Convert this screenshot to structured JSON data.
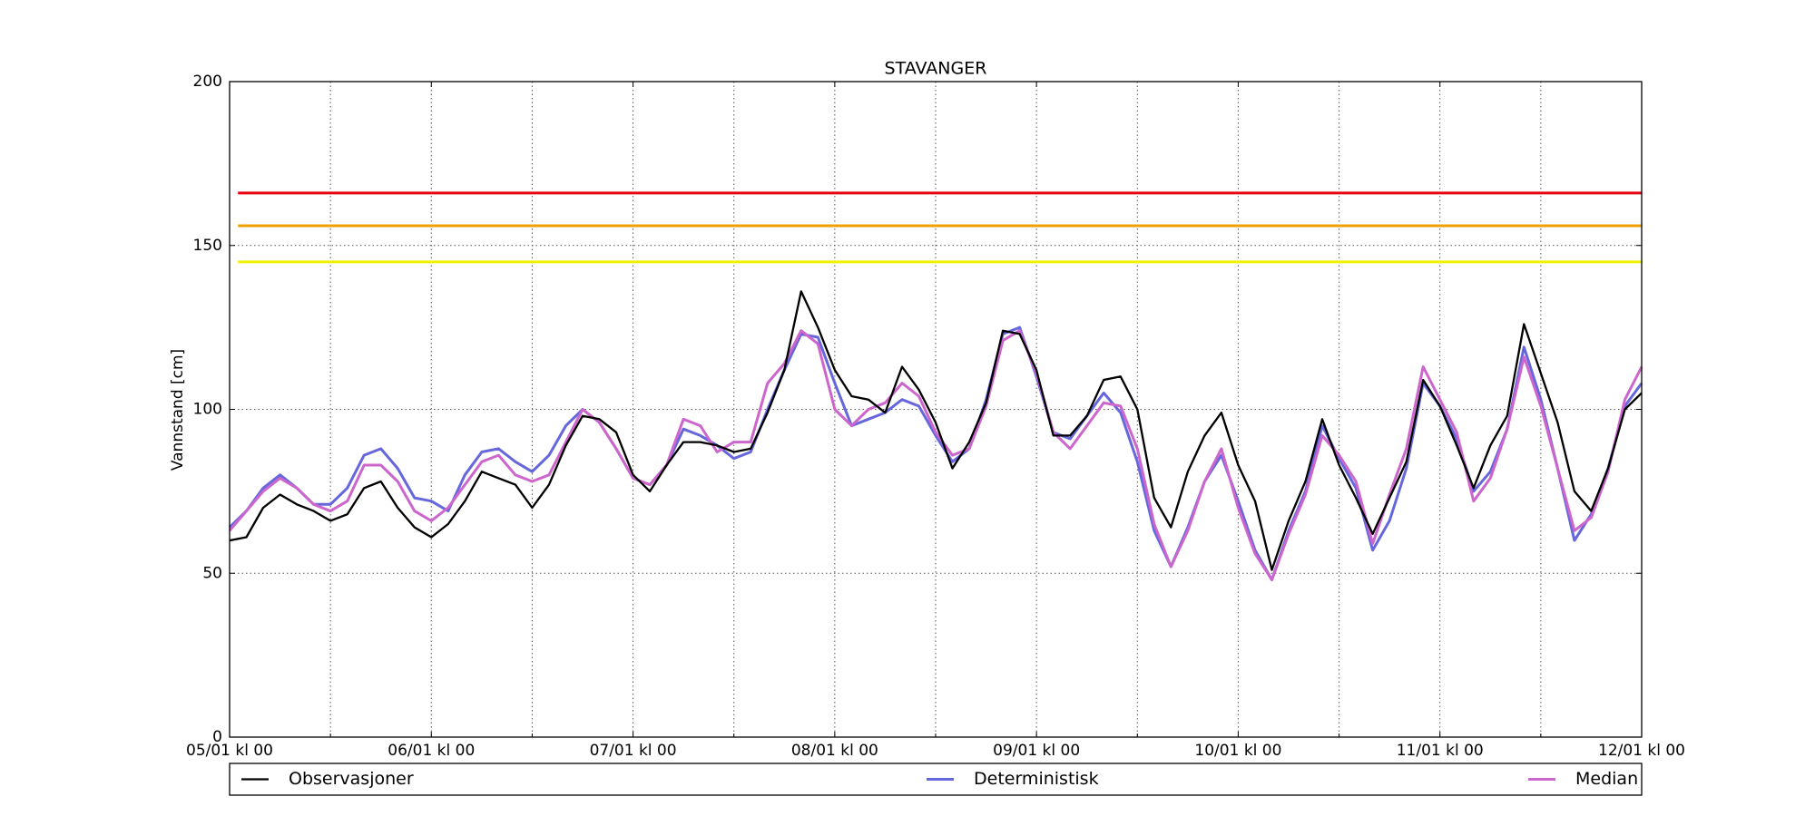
{
  "chart_data": {
    "type": "line",
    "title": "STAVANGER",
    "y_label": "Vannstand [cm]",
    "x": [
      0,
      2,
      4,
      6,
      8,
      10,
      12,
      14,
      16,
      18,
      20,
      22,
      24,
      26,
      28,
      30,
      32,
      34,
      36,
      38,
      40,
      42,
      44,
      46,
      48,
      50,
      52,
      54,
      56,
      58,
      60,
      62,
      64,
      66,
      68,
      70,
      72,
      74,
      76,
      78,
      80,
      82,
      84,
      86,
      88,
      90,
      92,
      94,
      96,
      98,
      100,
      102,
      104,
      106,
      108,
      110,
      112,
      114,
      116,
      118,
      120,
      122,
      124,
      126,
      128,
      130,
      132,
      134,
      136,
      138,
      140,
      142,
      144,
      146,
      148,
      150,
      152,
      154,
      156,
      158,
      160,
      162,
      164,
      166,
      168
    ],
    "series": [
      {
        "name": "Observasjoner",
        "color": "#000000",
        "values": [
          60,
          61,
          70,
          74,
          71,
          69,
          66,
          68,
          76,
          78,
          70,
          64,
          61,
          65,
          72,
          81,
          79,
          77,
          70,
          77,
          89,
          98,
          97,
          93,
          80,
          75,
          83,
          90,
          90,
          89,
          87,
          88,
          99,
          112,
          136,
          125,
          112,
          104,
          103,
          99,
          113,
          106,
          96,
          82,
          90,
          102,
          124,
          123,
          112,
          92,
          92,
          98,
          109,
          110,
          100,
          73,
          64,
          81,
          92,
          99,
          83,
          72,
          51,
          66,
          78,
          97,
          83,
          73,
          62,
          73,
          84,
          109,
          101,
          89,
          76,
          89,
          98,
          126,
          111,
          96,
          75,
          69,
          82,
          100,
          105
        ]
      },
      {
        "name": "Deterministisk",
        "color": "#6666dd",
        "values": [
          64,
          69,
          76,
          80,
          76,
          71,
          71,
          76,
          86,
          88,
          82,
          73,
          72,
          69,
          80,
          87,
          88,
          84,
          81,
          86,
          95,
          100,
          96,
          88,
          79,
          77,
          83,
          94,
          92,
          89,
          85,
          87,
          100,
          112,
          123,
          122,
          108,
          95,
          97,
          99,
          103,
          101,
          92,
          84,
          88,
          103,
          123,
          125,
          110,
          93,
          91,
          98,
          105,
          99,
          84,
          63,
          52,
          64,
          78,
          86,
          72,
          57,
          48,
          63,
          75,
          95,
          85,
          76,
          57,
          66,
          82,
          108,
          101,
          91,
          75,
          81,
          94,
          119,
          103,
          82,
          60,
          68,
          82,
          101,
          108
        ]
      },
      {
        "name": "Median",
        "color": "#cc66cc",
        "values": [
          63,
          69,
          75,
          79,
          76,
          71,
          69,
          72,
          83,
          83,
          78,
          69,
          66,
          70,
          77,
          84,
          86,
          80,
          78,
          80,
          90,
          100,
          96,
          88,
          79,
          77,
          83,
          97,
          95,
          87,
          90,
          90,
          108,
          114,
          124,
          120,
          100,
          95,
          100,
          102,
          108,
          104,
          93,
          86,
          88,
          101,
          121,
          124,
          111,
          93,
          88,
          95,
          102,
          101,
          88,
          65,
          52,
          63,
          78,
          88,
          70,
          56,
          48,
          62,
          74,
          92,
          86,
          78,
          59,
          74,
          88,
          113,
          103,
          93,
          72,
          79,
          94,
          116,
          101,
          82,
          63,
          67,
          81,
          103,
          113
        ]
      }
    ],
    "hlines": [
      {
        "value": 166,
        "color": "#e8000f"
      },
      {
        "value": 156,
        "color": "#f0a000"
      },
      {
        "value": 145,
        "color": "#f0f000"
      }
    ],
    "xlim": [
      0,
      168
    ],
    "xticks": [
      {
        "value": 0,
        "label": "05/01 kl 00"
      },
      {
        "value": 24,
        "label": "06/01 kl 00"
      },
      {
        "value": 48,
        "label": "07/01 kl 00"
      },
      {
        "value": 72,
        "label": "08/01 kl 00"
      },
      {
        "value": 96,
        "label": "09/01 kl 00"
      },
      {
        "value": 120,
        "label": "10/01 kl 00"
      },
      {
        "value": 144,
        "label": "11/01 kl 00"
      },
      {
        "value": 168,
        "label": "12/01 kl 00"
      }
    ],
    "xminorticks": [
      12,
      36,
      60,
      84,
      108,
      132,
      156
    ],
    "ylim": [
      0,
      200
    ],
    "yticks": [
      0,
      50,
      100,
      150,
      200
    ],
    "grid": true,
    "legend": "below"
  }
}
